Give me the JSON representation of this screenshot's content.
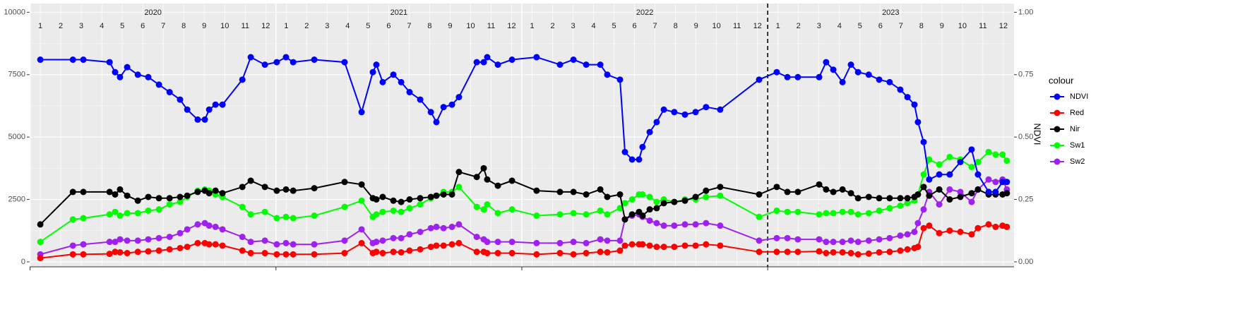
{
  "chart_data": {
    "type": "line",
    "x": [
      1.0,
      2.59,
      3.1,
      4.38,
      4.65,
      4.89,
      5.24,
      5.76,
      6.27,
      6.79,
      7.31,
      7.82,
      8.17,
      8.68,
      9.03,
      9.24,
      9.55,
      9.89,
      10.86,
      11.27,
      11.96,
      12.54,
      12.99,
      13.34,
      14.37,
      15.85,
      16.68,
      17.23,
      17.4,
      17.71,
      18.23,
      18.61,
      19.02,
      19.54,
      20.06,
      20.33,
      20.68,
      21.09,
      21.43,
      22.3,
      22.64,
      22.81,
      23.33,
      24.02,
      25.22,
      26.36,
      27.02,
      27.64,
      28.33,
      28.67,
      29.29,
      29.53,
      29.88,
      30.22,
      30.39,
      30.74,
      31.08,
      31.43,
      31.94,
      32.46,
      32.98,
      33.49,
      34.18,
      36.08,
      36.94,
      37.46,
      37.97,
      39.01,
      39.35,
      39.7,
      40.15,
      40.56,
      40.91,
      41.43,
      41.94,
      42.45,
      42.97,
      43.32,
      43.66,
      43.83,
      44.11,
      44.38,
      44.87,
      45.38,
      45.9,
      46.45,
      46.76,
      47.28,
      47.62,
      47.96,
      48.17
    ],
    "series": [
      {
        "name": "NDVI",
        "color": "#0000ff",
        "axis": "y2",
        "values": [
          0.81,
          0.81,
          0.81,
          0.8,
          0.76,
          0.74,
          0.78,
          0.75,
          0.74,
          0.71,
          0.68,
          0.65,
          0.61,
          0.57,
          0.57,
          0.61,
          0.63,
          0.63,
          0.73,
          0.82,
          0.79,
          0.8,
          0.82,
          0.8,
          0.81,
          0.8,
          0.6,
          0.76,
          0.79,
          0.72,
          0.75,
          0.72,
          0.68,
          0.65,
          0.6,
          0.56,
          0.62,
          0.63,
          0.66,
          0.8,
          0.8,
          0.82,
          0.79,
          0.81,
          0.82,
          0.79,
          0.81,
          0.79,
          0.79,
          0.75,
          0.73,
          0.44,
          0.41,
          0.41,
          0.46,
          0.52,
          0.56,
          0.61,
          0.6,
          0.59,
          0.6,
          0.62,
          0.61,
          0.73,
          0.76,
          0.74,
          0.74,
          0.74,
          0.8,
          0.77,
          0.72,
          0.79,
          0.76,
          0.75,
          0.73,
          0.72,
          0.69,
          0.66,
          0.63,
          0.56,
          0.48,
          0.33,
          0.35,
          0.35,
          0.4,
          0.45,
          0.35,
          0.28,
          0.28,
          0.32,
          0.32
        ]
      },
      {
        "name": "Red",
        "color": "#ff0000",
        "values": [
          150,
          300,
          300,
          320,
          400,
          380,
          350,
          400,
          420,
          450,
          500,
          550,
          600,
          750,
          750,
          700,
          700,
          650,
          450,
          350,
          350,
          300,
          300,
          300,
          300,
          350,
          750,
          350,
          400,
          350,
          400,
          380,
          450,
          500,
          600,
          650,
          650,
          700,
          750,
          400,
          400,
          350,
          350,
          350,
          300,
          350,
          300,
          350,
          400,
          380,
          450,
          650,
          700,
          700,
          700,
          650,
          600,
          600,
          600,
          650,
          650,
          700,
          650,
          400,
          400,
          400,
          400,
          420,
          350,
          380,
          380,
          350,
          300,
          330,
          380,
          400,
          450,
          500,
          550,
          600,
          1350,
          1450,
          1150,
          1250,
          1200,
          1100,
          1350,
          1500,
          1400,
          1450,
          1400
        ]
      },
      {
        "name": "Nir",
        "color": "#000000",
        "values": [
          1500,
          2800,
          2800,
          2800,
          2700,
          2900,
          2650,
          2450,
          2600,
          2550,
          2550,
          2600,
          2650,
          2800,
          2850,
          2750,
          2850,
          2750,
          3000,
          3250,
          3000,
          2850,
          2900,
          2850,
          2950,
          3200,
          3100,
          2550,
          2500,
          2600,
          2450,
          2400,
          2500,
          2550,
          2600,
          2650,
          2700,
          2700,
          3600,
          3400,
          3750,
          3300,
          3050,
          3250,
          2850,
          2800,
          2800,
          2700,
          2900,
          2600,
          2700,
          1700,
          1900,
          2000,
          1850,
          2100,
          2150,
          2350,
          2400,
          2450,
          2600,
          2850,
          3000,
          2700,
          3000,
          2800,
          2800,
          3100,
          2900,
          2800,
          2900,
          2750,
          2550,
          2600,
          2550,
          2550,
          2550,
          2550,
          2600,
          2700,
          3000,
          2650,
          2900,
          2500,
          2600,
          2750,
          2900,
          2700,
          2700,
          2700,
          2750
        ]
      },
      {
        "name": "Sw1",
        "color": "#00ff00",
        "values": [
          800,
          1700,
          1750,
          1900,
          2000,
          1850,
          1950,
          1950,
          2050,
          2100,
          2300,
          2400,
          2600,
          2850,
          2900,
          2850,
          2700,
          2600,
          2200,
          1900,
          2000,
          1750,
          1800,
          1750,
          1850,
          2200,
          2450,
          1800,
          1900,
          2000,
          2050,
          2000,
          2150,
          2300,
          2550,
          2650,
          2800,
          2800,
          3000,
          2200,
          2100,
          2300,
          1950,
          2100,
          1850,
          1900,
          1950,
          1900,
          2050,
          1900,
          2150,
          2350,
          2500,
          2700,
          2700,
          2600,
          2400,
          2500,
          2400,
          2500,
          2500,
          2600,
          2650,
          1800,
          2050,
          2000,
          2000,
          1900,
          1950,
          1950,
          2000,
          2000,
          1900,
          1950,
          2050,
          2150,
          2250,
          2350,
          2450,
          2700,
          3500,
          4100,
          3900,
          4200,
          4100,
          3800,
          4000,
          4400,
          4300,
          4300,
          4050
        ]
      },
      {
        "name": "Sw2",
        "color": "#a020f0",
        "values": [
          300,
          650,
          700,
          800,
          800,
          900,
          850,
          850,
          900,
          950,
          1000,
          1150,
          1300,
          1500,
          1550,
          1450,
          1400,
          1300,
          1000,
          800,
          850,
          700,
          750,
          700,
          700,
          850,
          1300,
          750,
          800,
          850,
          950,
          950,
          1100,
          1200,
          1350,
          1400,
          1350,
          1400,
          1500,
          1000,
          900,
          800,
          800,
          800,
          750,
          750,
          800,
          750,
          900,
          850,
          850,
          1700,
          1850,
          1900,
          1800,
          1650,
          1550,
          1450,
          1450,
          1500,
          1500,
          1550,
          1450,
          850,
          950,
          950,
          900,
          900,
          800,
          800,
          800,
          850,
          800,
          850,
          900,
          950,
          1050,
          1100,
          1200,
          1550,
          2100,
          2800,
          2300,
          2900,
          2800,
          2400,
          2900,
          3300,
          3200,
          3300,
          2900
        ]
      }
    ],
    "xlim": [
      0.48,
      48.52
    ],
    "xticks": [
      1,
      2,
      3,
      4,
      5,
      6,
      7,
      8,
      9,
      10,
      11,
      12,
      {
        "value": 13,
        "label": "1"
      },
      {
        "value": 14,
        "label": "2"
      },
      {
        "value": 15,
        "label": "3"
      },
      {
        "value": 16,
        "label": "4"
      },
      {
        "value": 17,
        "label": "5"
      },
      {
        "value": 18,
        "label": "6"
      },
      {
        "value": 19,
        "label": "7"
      },
      {
        "value": 20,
        "label": "8"
      },
      {
        "value": 21,
        "label": "9"
      },
      {
        "value": 22,
        "label": "10"
      },
      {
        "value": 23,
        "label": "11"
      },
      {
        "value": 24,
        "label": "12"
      },
      {
        "value": 25,
        "label": "1"
      },
      {
        "value": 26,
        "label": "2"
      },
      {
        "value": 27,
        "label": "3"
      },
      {
        "value": 28,
        "label": "4"
      },
      {
        "value": 29,
        "label": "5"
      },
      {
        "value": 30,
        "label": "6"
      },
      {
        "value": 31,
        "label": "7"
      },
      {
        "value": 32,
        "label": "8"
      },
      {
        "value": 33,
        "label": "9"
      },
      {
        "value": 34,
        "label": "10"
      },
      {
        "value": 35,
        "label": "11"
      },
      {
        "value": 36,
        "label": "12"
      },
      {
        "value": 37,
        "label": "1"
      },
      {
        "value": 38,
        "label": "2"
      },
      {
        "value": 39,
        "label": "3"
      },
      {
        "value": 40,
        "label": "4"
      },
      {
        "value": 41,
        "label": "5"
      },
      {
        "value": 42,
        "label": "6"
      },
      {
        "value": 43,
        "label": "7"
      },
      {
        "value": 44,
        "label": "8"
      },
      {
        "value": 45,
        "label": "9"
      },
      {
        "value": 46,
        "label": "10"
      },
      {
        "value": 47,
        "label": "11"
      },
      {
        "value": 48,
        "label": "12"
      }
    ],
    "year_labels": [
      {
        "value": 6.5,
        "label": "2020"
      },
      {
        "value": 18.5,
        "label": "2021"
      },
      {
        "value": 30.5,
        "label": "2022"
      },
      {
        "value": 42.5,
        "label": "2023"
      }
    ],
    "vline": 36.5,
    "ylim": [
      -200,
      10350
    ],
    "yticks": [
      0,
      2500,
      5000,
      7500,
      10000
    ],
    "y2lim": [
      -0.02,
      1.035
    ],
    "y2ticks": [
      {
        "value": 0,
        "label": "0.00"
      },
      {
        "value": 0.25,
        "label": "0.25"
      },
      {
        "value": 0.5,
        "label": "0.50"
      },
      {
        "value": 0.75,
        "label": "0.75"
      },
      {
        "value": 1,
        "label": "1.00"
      }
    ],
    "y2_label": "NDVI",
    "legend_title": "colour",
    "legend": "right",
    "grid": true
  }
}
